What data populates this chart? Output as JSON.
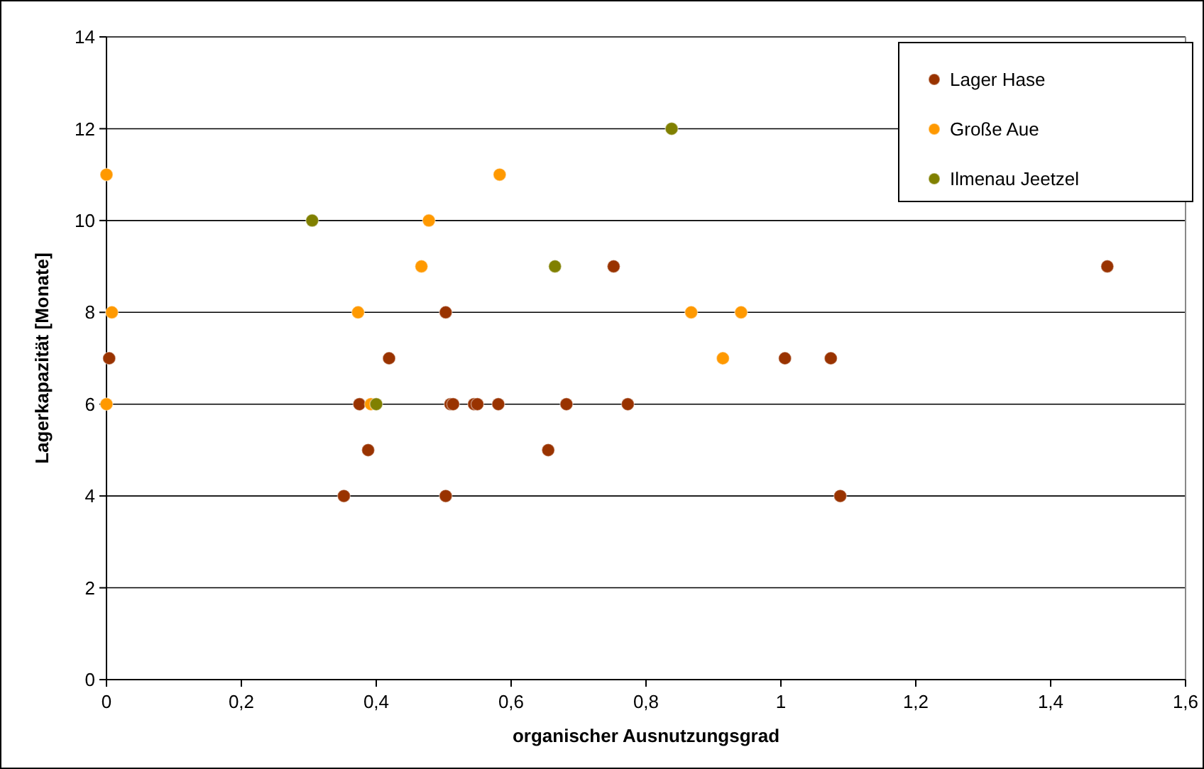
{
  "chart_data": {
    "type": "scatter",
    "xlabel": "organischer Ausnutzungsgrad",
    "ylabel": "Lagerkapazität [Monate]",
    "xlim": [
      0,
      1.6
    ],
    "xticks": [
      {
        "value": 0,
        "label": "0"
      },
      {
        "value": 0.2,
        "label": "0,2"
      },
      {
        "value": 0.4,
        "label": "0,4"
      },
      {
        "value": 0.6,
        "label": "0,6"
      },
      {
        "value": 0.8,
        "label": "0,8"
      },
      {
        "value": 1,
        "label": "1"
      },
      {
        "value": 1.2,
        "label": "1,2"
      },
      {
        "value": 1.4,
        "label": "1,4"
      },
      {
        "value": 1.6,
        "label": "1,6"
      }
    ],
    "ylim": [
      0,
      14
    ],
    "yticks": [
      0,
      2,
      4,
      6,
      8,
      10,
      12,
      14
    ],
    "grid": "y",
    "legend": "top right",
    "marker": "circle",
    "series": [
      {
        "name": "Lager Hase",
        "color": "#993300",
        "x": [
          0.004,
          0.352,
          0.375,
          0.388,
          0.419,
          0.503,
          0.503,
          0.51,
          0.514,
          0.545,
          0.55,
          0.581,
          0.655,
          0.682,
          0.752,
          0.773,
          1.006,
          1.074,
          1.088,
          1.484
        ],
        "values": [
          7,
          4,
          6,
          5,
          7,
          8,
          4,
          6,
          6,
          6,
          6,
          6,
          5,
          6,
          9,
          6,
          7,
          7,
          4,
          9
        ]
      },
      {
        "name": "Große Aue",
        "color": "#ff9900",
        "x": [
          0,
          0.008,
          0,
          0.373,
          0.392,
          0.467,
          0.478,
          0.583,
          0.867,
          0.914,
          0.941
        ],
        "values": [
          11,
          8,
          6,
          8,
          6,
          9,
          10,
          11,
          8,
          7,
          8
        ]
      },
      {
        "name": "Ilmenau Jeetzel",
        "color": "#808000",
        "x": [
          0.305,
          0.4,
          0.665,
          0.838
        ],
        "values": [
          10,
          6,
          9,
          12
        ]
      }
    ]
  }
}
